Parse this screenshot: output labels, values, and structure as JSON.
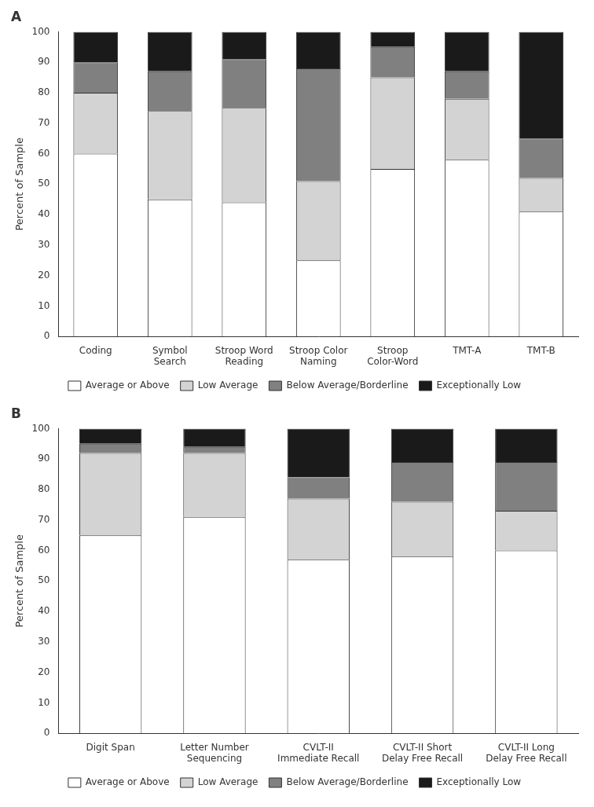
{
  "chart_data": [
    {
      "type": "bar",
      "title": "A",
      "stacked": true,
      "grid": false,
      "legend": "bottom",
      "categories": [
        "Coding",
        "Symbol\nSearch",
        "Stroop Word\nReading",
        "Stroop Color\nNaming",
        "Stroop\nColor-Word",
        "TMT-A",
        "TMT-B"
      ],
      "series": [
        {
          "name": "Average or Above",
          "color": "#ffffff",
          "values": [
            60,
            45,
            44,
            25,
            55,
            58,
            41
          ]
        },
        {
          "name": "Low Average",
          "color": "#d3d3d3",
          "values": [
            20,
            29,
            31,
            26,
            30,
            20,
            11
          ]
        },
        {
          "name": "Below Average/Borderline",
          "color": "#808080",
          "values": [
            10,
            13,
            16,
            37,
            10,
            9,
            13
          ]
        },
        {
          "name": "Exceptionally Low",
          "color": "#1a1a1a",
          "values": [
            10,
            13,
            9,
            12,
            5,
            13,
            35
          ]
        }
      ],
      "ylabel": "Percent of Sample",
      "ylim": [
        0,
        100
      ],
      "yticks": [
        0,
        10,
        20,
        30,
        40,
        50,
        60,
        70,
        80,
        90,
        100
      ]
    },
    {
      "type": "bar",
      "title": "B",
      "stacked": true,
      "grid": false,
      "legend": "bottom",
      "categories": [
        "Digit Span",
        "Letter Number\nSequencing",
        "CVLT-II\nImmediate Recall",
        "CVLT-II Short\nDelay Free Recall",
        "CVLT-II Long\nDelay Free Recall"
      ],
      "series": [
        {
          "name": "Average or Above",
          "color": "#ffffff",
          "values": [
            65,
            71,
            57,
            58,
            60
          ]
        },
        {
          "name": "Low Average",
          "color": "#d3d3d3",
          "values": [
            27,
            21,
            20,
            18,
            13
          ]
        },
        {
          "name": "Below Average/Borderline",
          "color": "#808080",
          "values": [
            3,
            2,
            7,
            13,
            16
          ]
        },
        {
          "name": "Exceptionally Low",
          "color": "#1a1a1a",
          "values": [
            5,
            6,
            16,
            11,
            11
          ]
        }
      ],
      "ylabel": "Percent of Sample",
      "ylim": [
        0,
        100
      ],
      "yticks": [
        0,
        10,
        20,
        30,
        40,
        50,
        60,
        70,
        80,
        90,
        100
      ]
    }
  ]
}
